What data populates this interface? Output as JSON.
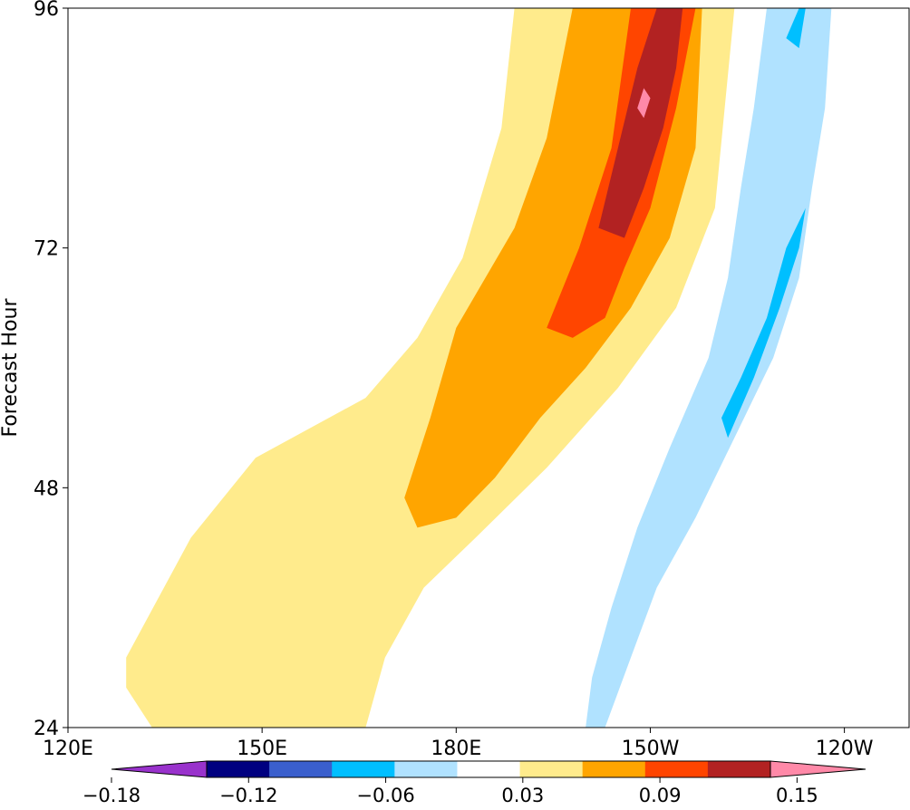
{
  "chart_data": {
    "type": "heatmap",
    "subtype": "filled-contour (Hovmöller diagram)",
    "title": "",
    "xlabel": "",
    "ylabel": "Forecast Hour",
    "x_ticks": [
      "120E",
      "150E",
      "180E",
      "150W",
      "120W"
    ],
    "x_tick_values": [
      120,
      150,
      180,
      210,
      240
    ],
    "xlim": [
      120,
      250
    ],
    "y_ticks": [
      "24",
      "48",
      "72",
      "96"
    ],
    "y_tick_values": [
      24,
      48,
      72,
      96
    ],
    "ylim": [
      24,
      96
    ],
    "grid": false,
    "colorbar": {
      "orientation": "horizontal",
      "placement": "bottom",
      "extend": "both",
      "levels": [
        -0.18,
        -0.15,
        -0.12,
        -0.09,
        -0.06,
        -0.03,
        0.03,
        0.06,
        0.09,
        0.12,
        0.15,
        0.18
      ],
      "tick_labels": [
        "−0.18",
        "−0.12",
        "−0.06",
        "0.03",
        "0.09",
        "0.15"
      ],
      "tick_values": [
        -0.18,
        -0.12,
        -0.06,
        0.03,
        0.09,
        0.15
      ],
      "colors": [
        "#9932cc",
        "#000080",
        "#3a5fcd",
        "#00bfff",
        "#b0e2ff",
        "#ffffff",
        "#ffeb8c",
        "#ffa500",
        "#ff4500",
        "#b22222",
        "#ff89a8"
      ]
    },
    "features": [
      {
        "name": "positive band",
        "direction": "tilts eastward with forecast hour",
        "fill": "#ffeb8c",
        "polygon": [
          [
            129,
            31
          ],
          [
            139,
            43
          ],
          [
            149,
            51
          ],
          [
            166,
            57
          ],
          [
            174,
            63
          ],
          [
            181,
            71
          ],
          [
            187,
            84
          ],
          [
            189,
            96
          ],
          [
            223,
            96
          ],
          [
            220,
            76
          ],
          [
            214,
            66
          ],
          [
            205,
            58
          ],
          [
            194,
            50
          ],
          [
            183,
            43
          ],
          [
            175,
            38
          ],
          [
            169,
            31
          ],
          [
            166,
            24
          ],
          [
            133,
            24
          ],
          [
            129,
            28
          ]
        ]
      },
      {
        "name": "positive band",
        "fill": "#ffa500",
        "polygon": [
          [
            172,
            47
          ],
          [
            176,
            55
          ],
          [
            180,
            64
          ],
          [
            189,
            74
          ],
          [
            194,
            83
          ],
          [
            198,
            96
          ],
          [
            218,
            96
          ],
          [
            217,
            82
          ],
          [
            213,
            73
          ],
          [
            207,
            66
          ],
          [
            200,
            60
          ],
          [
            193,
            55
          ],
          [
            186,
            49
          ],
          [
            180,
            45
          ],
          [
            174,
            44
          ]
        ]
      },
      {
        "name": "positive core",
        "fill": "#ff4500",
        "polygon": [
          [
            194,
            64
          ],
          [
            199,
            72
          ],
          [
            204,
            82
          ],
          [
            207,
            96
          ],
          [
            217,
            96
          ],
          [
            214,
            86
          ],
          [
            210,
            76
          ],
          [
            206,
            70
          ],
          [
            203,
            65
          ],
          [
            198,
            63
          ]
        ]
      },
      {
        "name": "positive core",
        "fill": "#b22222",
        "polygon": [
          [
            202,
            74
          ],
          [
            205,
            82
          ],
          [
            208,
            90
          ],
          [
            211,
            96
          ],
          [
            215,
            96
          ],
          [
            214,
            90
          ],
          [
            212,
            84
          ],
          [
            209,
            78
          ],
          [
            206,
            73
          ]
        ]
      },
      {
        "name": "positive maximum",
        "fill": "#ff89a8",
        "polygon": [
          [
            208,
            86
          ],
          [
            209,
            88
          ],
          [
            210,
            87
          ],
          [
            209,
            85
          ]
        ]
      },
      {
        "name": "negative band",
        "direction": "tilts eastward with forecast hour",
        "fill": "#b0e2ff",
        "polygon": [
          [
            203,
            24
          ],
          [
            207,
            31
          ],
          [
            211,
            38
          ],
          [
            217,
            45
          ],
          [
            223,
            53
          ],
          [
            229,
            61
          ],
          [
            233,
            69
          ],
          [
            235,
            78
          ],
          [
            237,
            86
          ],
          [
            238,
            96
          ],
          [
            228,
            96
          ],
          [
            226,
            86
          ],
          [
            224,
            78
          ],
          [
            222,
            69
          ],
          [
            219,
            61
          ],
          [
            213,
            52
          ],
          [
            208,
            44
          ],
          [
            204,
            36
          ],
          [
            201,
            29
          ],
          [
            200,
            24
          ]
        ]
      },
      {
        "name": "negative core",
        "fill": "#00bfff",
        "polygon": [
          [
            222,
            53
          ],
          [
            226,
            59
          ],
          [
            230,
            66
          ],
          [
            233,
            72
          ],
          [
            234,
            76
          ],
          [
            231,
            72
          ],
          [
            228,
            65
          ],
          [
            224,
            59
          ],
          [
            221,
            55
          ]
        ]
      },
      {
        "name": "negative core",
        "fill": "#00bfff",
        "polygon": [
          [
            231,
            93
          ],
          [
            233,
            96
          ],
          [
            234,
            96
          ],
          [
            233,
            92
          ]
        ]
      }
    ]
  }
}
